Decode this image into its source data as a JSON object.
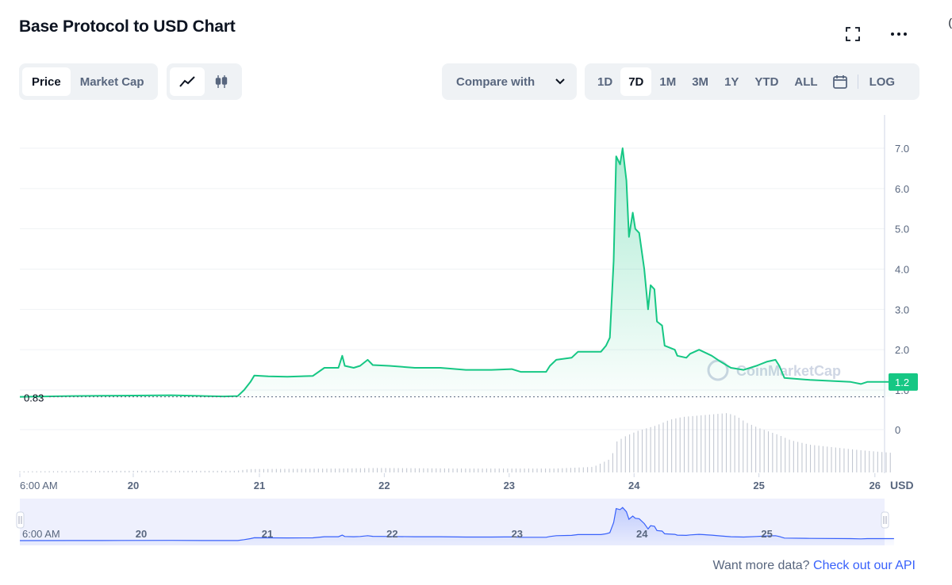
{
  "header": {
    "title": "Base Protocol to USD Chart"
  },
  "metric_tabs": [
    {
      "label": "Price",
      "active": true
    },
    {
      "label": "Market Cap",
      "active": false
    }
  ],
  "chart_type_toggle": [
    {
      "icon": "line-chart-icon",
      "active": true
    },
    {
      "icon": "candlestick-icon",
      "active": false
    }
  ],
  "compare": {
    "label": "Compare with"
  },
  "ranges": [
    {
      "label": "1D",
      "active": false
    },
    {
      "label": "7D",
      "active": true
    },
    {
      "label": "1M",
      "active": false
    },
    {
      "label": "3M",
      "active": false
    },
    {
      "label": "1Y",
      "active": false
    },
    {
      "label": "YTD",
      "active": false
    },
    {
      "label": "ALL",
      "active": false
    }
  ],
  "log_label": "LOG",
  "footer": {
    "text": "Want more data?",
    "link": "Check out our API"
  },
  "watermark": "CoinMarketCap",
  "colors": {
    "line": "#16c784",
    "nav": "#3861fb",
    "accent": "#16c784"
  },
  "chart_data": {
    "type": "area",
    "currency_label": "USD",
    "y_ticks": [
      "7.0",
      "6.0",
      "5.0",
      "4.0",
      "3.0",
      "2.0",
      "1.0"
    ],
    "ylim": [
      0,
      7.5
    ],
    "x_ticks": [
      "6:00 AM",
      "20",
      "21",
      "22",
      "23",
      "24",
      "25",
      "26"
    ],
    "navigator_ticks": [
      "6:00 AM",
      "20",
      "21",
      "22",
      "23",
      "24",
      "25"
    ],
    "open_price_label": "0.83",
    "current_price_label": "1.2",
    "volume_zero_label": "0",
    "price_series": [
      [
        0,
        0.83
      ],
      [
        4,
        0.85
      ],
      [
        8,
        0.86
      ],
      [
        11.9,
        0.87
      ],
      [
        14.5,
        0.85
      ],
      [
        16,
        0.84
      ],
      [
        17.1,
        0.85
      ],
      [
        17.6,
        1.0
      ],
      [
        18.1,
        1.2
      ],
      [
        18.4,
        1.36
      ],
      [
        19.5,
        1.34
      ],
      [
        21,
        1.33
      ],
      [
        23,
        1.35
      ],
      [
        23.9,
        1.55
      ],
      [
        25,
        1.55
      ],
      [
        25.3,
        1.85
      ],
      [
        25.5,
        1.6
      ],
      [
        26.2,
        1.55
      ],
      [
        26.7,
        1.6
      ],
      [
        27.3,
        1.75
      ],
      [
        27.7,
        1.62
      ],
      [
        29,
        1.6
      ],
      [
        31,
        1.55
      ],
      [
        33,
        1.55
      ],
      [
        35,
        1.5
      ],
      [
        37,
        1.5
      ],
      [
        38.6,
        1.52
      ],
      [
        39.3,
        1.45
      ],
      [
        41.3,
        1.45
      ],
      [
        41.6,
        1.6
      ],
      [
        42.1,
        1.75
      ],
      [
        43.3,
        1.8
      ],
      [
        43.8,
        1.95
      ],
      [
        45.6,
        1.95
      ],
      [
        46.0,
        2.1
      ],
      [
        46.3,
        2.3
      ],
      [
        46.6,
        4.2
      ],
      [
        46.8,
        6.8
      ],
      [
        47.1,
        6.6
      ],
      [
        47.3,
        7.0
      ],
      [
        47.6,
        6.2
      ],
      [
        47.8,
        4.8
      ],
      [
        48.1,
        5.4
      ],
      [
        48.3,
        5.0
      ],
      [
        48.6,
        4.9
      ],
      [
        49.0,
        4.0
      ],
      [
        49.3,
        3.0
      ],
      [
        49.5,
        3.6
      ],
      [
        49.8,
        3.5
      ],
      [
        50.0,
        2.7
      ],
      [
        50.4,
        2.6
      ],
      [
        50.6,
        2.1
      ],
      [
        51.4,
        2.0
      ],
      [
        51.6,
        1.85
      ],
      [
        52.3,
        1.8
      ],
      [
        52.6,
        1.9
      ],
      [
        53.3,
        2.0
      ],
      [
        54.3,
        1.85
      ],
      [
        55.0,
        1.7
      ],
      [
        55.8,
        1.55
      ],
      [
        56.8,
        1.5
      ],
      [
        57.8,
        1.6
      ],
      [
        58.6,
        1.7
      ],
      [
        59.3,
        1.75
      ],
      [
        59.6,
        1.6
      ],
      [
        60.0,
        1.3
      ],
      [
        62,
        1.25
      ],
      [
        65.2,
        1.2
      ],
      [
        66,
        1.15
      ],
      [
        66.5,
        1.2
      ],
      [
        68.6,
        1.2
      ]
    ],
    "volume_series": [
      [
        0,
        0.02
      ],
      [
        8,
        0.03
      ],
      [
        17,
        0.03
      ],
      [
        18,
        0.06
      ],
      [
        25,
        0.07
      ],
      [
        28,
        0.08
      ],
      [
        35,
        0.07
      ],
      [
        42,
        0.07
      ],
      [
        45,
        0.1
      ],
      [
        46.4,
        0.25
      ],
      [
        46.8,
        0.55
      ],
      [
        47.5,
        0.65
      ],
      [
        48.5,
        0.75
      ],
      [
        50,
        0.85
      ],
      [
        51,
        0.95
      ],
      [
        52,
        1.0
      ],
      [
        53,
        1.02
      ],
      [
        54.5,
        1.05
      ],
      [
        55.5,
        1.07
      ],
      [
        56.2,
        1.02
      ],
      [
        57,
        0.9
      ],
      [
        58,
        0.8
      ],
      [
        59.5,
        0.68
      ],
      [
        60.5,
        0.58
      ],
      [
        62,
        0.5
      ],
      [
        64,
        0.45
      ],
      [
        66,
        0.4
      ],
      [
        68.6,
        0.35
      ]
    ]
  }
}
